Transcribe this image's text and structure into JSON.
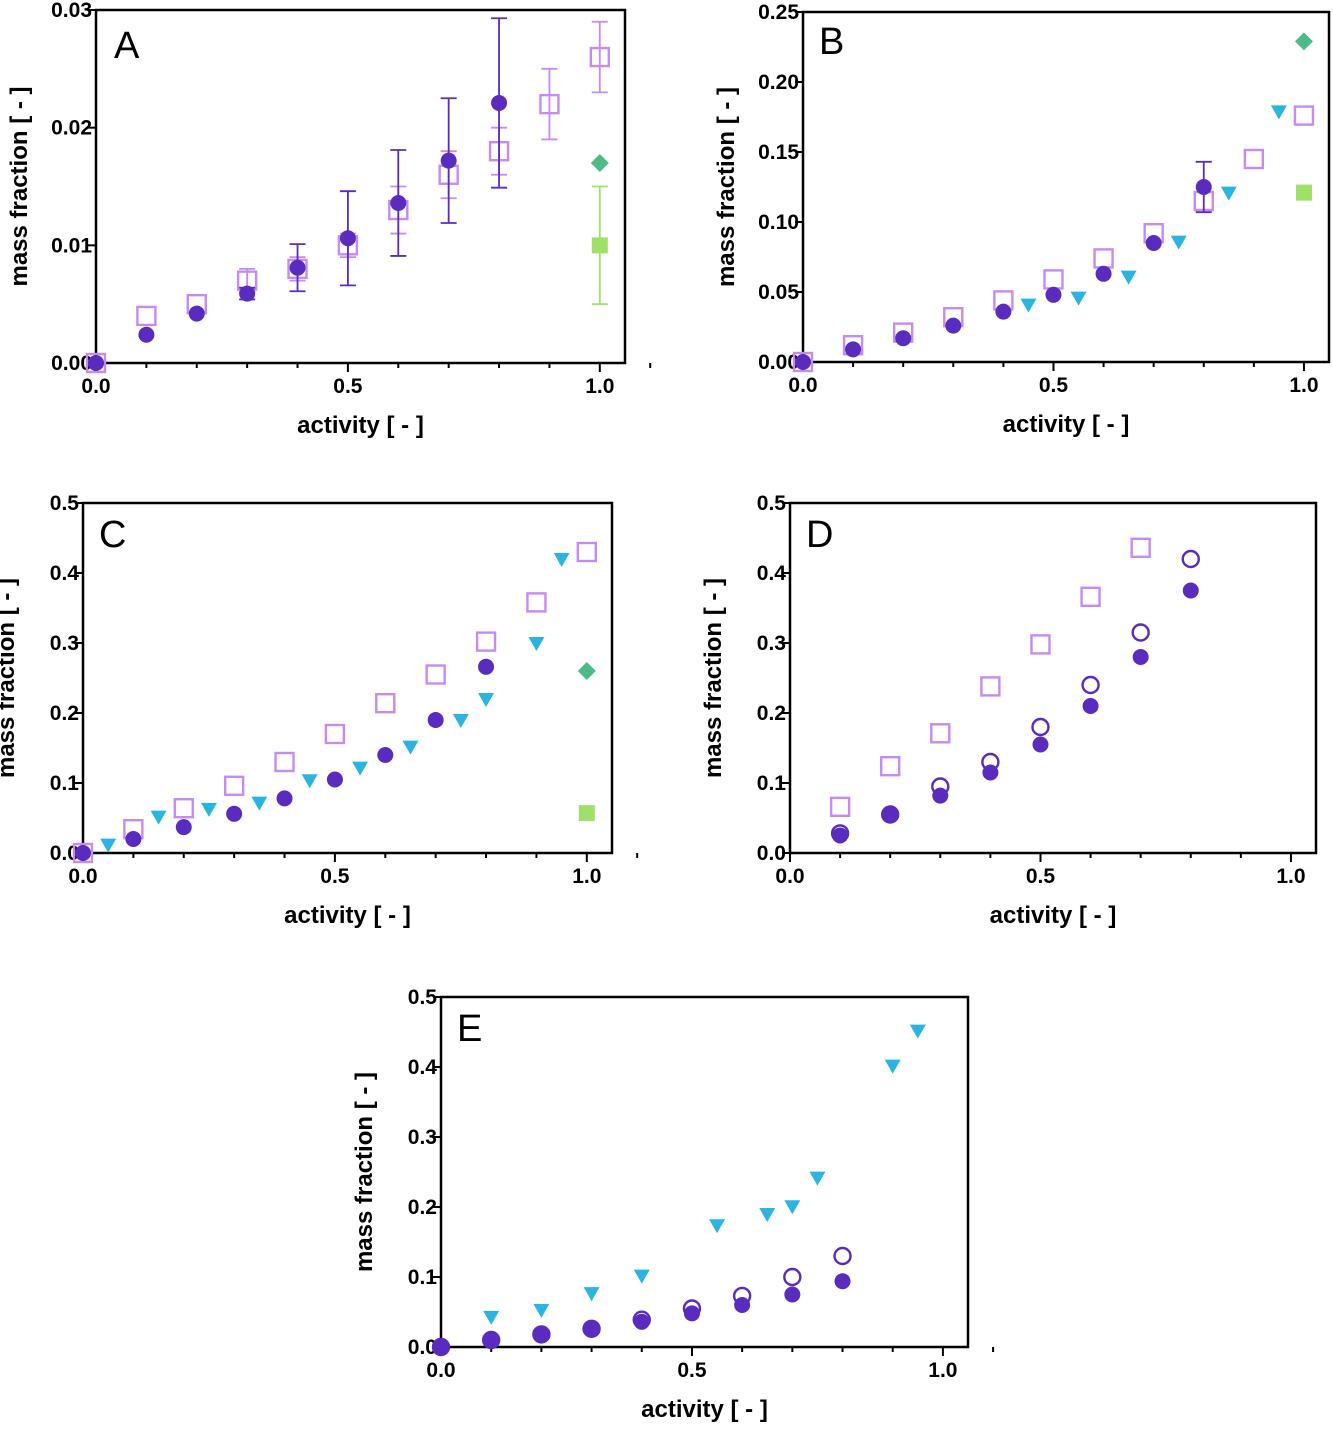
{
  "colors": {
    "purple_dark": "#5a2bbf",
    "purple_light": "#c58bf2",
    "cyan": "#2bb4e0",
    "green_diamond": "#4dbb86",
    "green_square": "#9ee06a",
    "axis": "#000000"
  },
  "marker_styles": {
    "filled_circle": "purple_dark",
    "open_square": "purple_light",
    "filled_triangle_down": "cyan",
    "filled_diamond": "green_diamond",
    "filled_square": "green_square",
    "open_circle": "purple_dark"
  },
  "chart_data": [
    {
      "type": "scatter",
      "panel": "A",
      "xlabel": "activity [ - ]",
      "ylabel": "mass fraction [ - ]",
      "xlim": [
        0,
        1.05
      ],
      "ylim": [
        0,
        0.03
      ],
      "xticks": [
        "0.0",
        "0.5",
        "1.0"
      ],
      "yticks": [
        "0.00",
        "0.01",
        "0.02",
        "0.03"
      ],
      "grid": false,
      "series": [
        {
          "marker": "open_square",
          "x": [
            0,
            0.1,
            0.2,
            0.3,
            0.4,
            0.5,
            0.6,
            0.7,
            0.8,
            0.9,
            1.0
          ],
          "y": [
            0,
            0.004,
            0.005,
            0.007,
            0.008,
            0.01,
            0.013,
            0.016,
            0.018,
            0.022,
            0.026
          ],
          "err": [
            0,
            0,
            0,
            0.001,
            0.001,
            0.001,
            0.002,
            0.002,
            0.002,
            0.003,
            0.003
          ]
        },
        {
          "marker": "filled_circle",
          "x": [
            0,
            0.1,
            0.2,
            0.3,
            0.4,
            0.5,
            0.6,
            0.7,
            0.8
          ],
          "y": [
            0,
            0.0024,
            0.0042,
            0.0059,
            0.0081,
            0.0106,
            0.0136,
            0.0172,
            0.0221
          ],
          "err": [
            0,
            0,
            0,
            0.0005,
            0.002,
            0.004,
            0.0045,
            0.0053,
            0.0072
          ]
        },
        {
          "marker": "filled_diamond",
          "x": [
            1.0
          ],
          "y": [
            0.017
          ]
        },
        {
          "marker": "filled_square",
          "x": [
            1.0
          ],
          "y": [
            0.01
          ],
          "err": [
            0.005
          ]
        }
      ]
    },
    {
      "type": "scatter",
      "panel": "B",
      "xlabel": "activity [ - ]",
      "ylabel": "mass fraction [ - ]",
      "xlim": [
        0,
        1.05
      ],
      "ylim": [
        0,
        0.25
      ],
      "xticks": [
        "0.0",
        "0.5",
        "1.0"
      ],
      "yticks": [
        "0.00",
        "0.05",
        "0.10",
        "0.15",
        "0.20",
        "0.25"
      ],
      "grid": false,
      "series": [
        {
          "marker": "filled_triangle_down",
          "x": [
            0.45,
            0.55,
            0.65,
            0.75,
            0.85,
            0.95
          ],
          "y": [
            0.041,
            0.046,
            0.061,
            0.086,
            0.121,
            0.179
          ]
        },
        {
          "marker": "open_square",
          "x": [
            0,
            0.1,
            0.2,
            0.3,
            0.4,
            0.5,
            0.6,
            0.7,
            0.8,
            0.9,
            1.0
          ],
          "y": [
            0,
            0.012,
            0.021,
            0.032,
            0.044,
            0.059,
            0.074,
            0.092,
            0.115,
            0.145,
            0.176
          ]
        },
        {
          "marker": "filled_circle",
          "x": [
            0,
            0.1,
            0.2,
            0.3,
            0.4,
            0.5,
            0.6,
            0.7,
            0.8
          ],
          "y": [
            0,
            0.009,
            0.017,
            0.026,
            0.036,
            0.048,
            0.063,
            0.085,
            0.125
          ],
          "err": [
            0,
            0,
            0,
            0,
            0,
            0,
            0,
            0,
            0.018
          ]
        },
        {
          "marker": "filled_diamond",
          "x": [
            1.0
          ],
          "y": [
            0.229
          ]
        },
        {
          "marker": "filled_square",
          "x": [
            1.0
          ],
          "y": [
            0.121
          ]
        }
      ]
    },
    {
      "type": "scatter",
      "panel": "C",
      "xlabel": "activity [ - ]",
      "ylabel": "mass fraction [ - ]",
      "xlim": [
        0,
        1.05
      ],
      "ylim": [
        0,
        0.5
      ],
      "xticks": [
        "0.0",
        "0.5",
        "1.0"
      ],
      "yticks": [
        "0.0",
        "0.1",
        "0.2",
        "0.3",
        "0.4",
        "0.5"
      ],
      "grid": false,
      "series": [
        {
          "marker": "filled_triangle_down",
          "x": [
            0.05,
            0.15,
            0.25,
            0.35,
            0.45,
            0.55,
            0.65,
            0.75,
            0.8,
            0.9,
            0.95
          ],
          "y": [
            0.012,
            0.052,
            0.063,
            0.072,
            0.104,
            0.122,
            0.152,
            0.19,
            0.22,
            0.3,
            0.42
          ]
        },
        {
          "marker": "open_square",
          "x": [
            0,
            0.1,
            0.2,
            0.3,
            0.4,
            0.5,
            0.6,
            0.7,
            0.8,
            0.9,
            1.0
          ],
          "y": [
            0,
            0.034,
            0.064,
            0.096,
            0.13,
            0.17,
            0.214,
            0.255,
            0.302,
            0.358,
            0.43
          ]
        },
        {
          "marker": "filled_circle",
          "x": [
            0,
            0.1,
            0.2,
            0.3,
            0.4,
            0.5,
            0.6,
            0.7,
            0.8
          ],
          "y": [
            0,
            0.02,
            0.037,
            0.056,
            0.078,
            0.105,
            0.14,
            0.19,
            0.266
          ]
        },
        {
          "marker": "filled_diamond",
          "x": [
            1.0
          ],
          "y": [
            0.26
          ]
        },
        {
          "marker": "filled_square",
          "x": [
            1.0
          ],
          "y": [
            0.057
          ]
        }
      ]
    },
    {
      "type": "scatter",
      "panel": "D",
      "xlabel": "activity [ - ]",
      "ylabel": "mass fraction [ - ]",
      "xlim": [
        0,
        1.05
      ],
      "ylim": [
        0,
        0.5
      ],
      "xticks": [
        "0.0",
        "0.5",
        "1.0"
      ],
      "yticks": [
        "0.0",
        "0.1",
        "0.2",
        "0.3",
        "0.4",
        "0.5"
      ],
      "grid": false,
      "series": [
        {
          "marker": "open_square",
          "x": [
            0.1,
            0.2,
            0.3,
            0.4,
            0.5,
            0.6,
            0.7
          ],
          "y": [
            0.066,
            0.124,
            0.171,
            0.238,
            0.298,
            0.366,
            0.436
          ]
        },
        {
          "marker": "open_circle",
          "x": [
            0.1,
            0.2,
            0.3,
            0.4,
            0.5,
            0.6,
            0.7,
            0.8
          ],
          "y": [
            0.028,
            0.055,
            0.095,
            0.13,
            0.18,
            0.24,
            0.315,
            0.42
          ]
        },
        {
          "marker": "filled_circle",
          "x": [
            0.1,
            0.2,
            0.3,
            0.4,
            0.5,
            0.6,
            0.7,
            0.8
          ],
          "y": [
            0.025,
            0.054,
            0.082,
            0.115,
            0.155,
            0.21,
            0.28,
            0.375
          ]
        }
      ]
    },
    {
      "type": "scatter",
      "panel": "E",
      "xlabel": "activity [ - ]",
      "ylabel": "mass fraction [ - ]",
      "xlim": [
        0,
        1.05
      ],
      "ylim": [
        0,
        0.5
      ],
      "xticks": [
        "0.0",
        "0.5",
        "1.0"
      ],
      "yticks": [
        "0.0",
        "0.1",
        "0.2",
        "0.3",
        "0.4",
        "0.5"
      ],
      "grid": false,
      "series": [
        {
          "marker": "filled_triangle_down",
          "x": [
            0.1,
            0.2,
            0.3,
            0.4,
            0.55,
            0.65,
            0.7,
            0.75,
            0.9,
            0.95
          ],
          "y": [
            0.043,
            0.053,
            0.077,
            0.102,
            0.174,
            0.19,
            0.201,
            0.242,
            0.402,
            0.452
          ]
        },
        {
          "marker": "open_circle",
          "x": [
            0,
            0.1,
            0.2,
            0.3,
            0.4,
            0.5,
            0.6,
            0.7,
            0.8
          ],
          "y": [
            0,
            0.01,
            0.018,
            0.026,
            0.039,
            0.055,
            0.073,
            0.1,
            0.13
          ]
        },
        {
          "marker": "filled_circle",
          "x": [
            0,
            0.1,
            0.2,
            0.3,
            0.4,
            0.5,
            0.6,
            0.7,
            0.8
          ],
          "y": [
            0,
            0.009,
            0.017,
            0.025,
            0.036,
            0.048,
            0.06,
            0.075,
            0.094
          ]
        }
      ]
    }
  ]
}
